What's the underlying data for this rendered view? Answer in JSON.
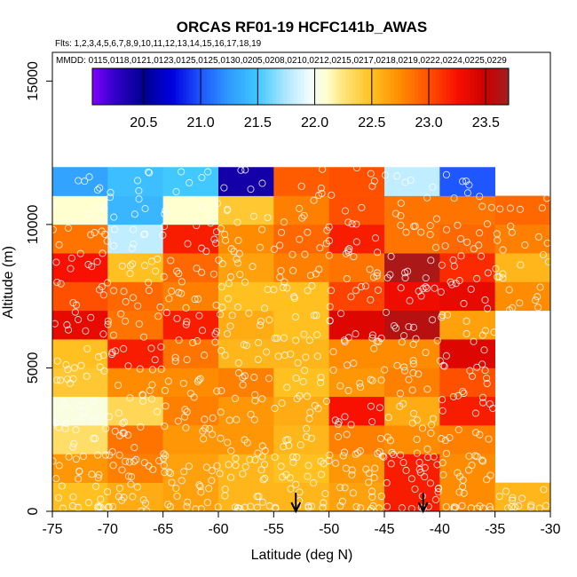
{
  "chart_data": {
    "type": "heatmap",
    "title": "ORCAS RF01-19 HCFC141b_AWAS",
    "flights_line": "Flts: 1,2,3,4,5,6,7,8,9,10,11,12,13,14,15,16,17,18,19",
    "mmdd_line": "MMDD: 0115,0118,0121,0123,0125,0125,0130,0205,0208,0210,0212,0215,0217,0218,0219,0222,0224,0225,0229",
    "xlabel": "Latitude (deg N)",
    "ylabel": "Altitude (m)",
    "xlim": [
      -75,
      -30
    ],
    "ylim": [
      0,
      16000
    ],
    "xticks": [
      "-75",
      "-70",
      "-65",
      "-60",
      "-55",
      "-50",
      "-45",
      "-40",
      "-35",
      "-30"
    ],
    "xtick_values": [
      -75,
      -70,
      -65,
      -60,
      -55,
      -50,
      -45,
      -40,
      -35,
      -30
    ],
    "yticks": [
      "0",
      "5000",
      "10000",
      "15000"
    ],
    "ytick_values": [
      0,
      5000,
      10000,
      15000
    ],
    "colorbar": {
      "min": 20.05,
      "max": 23.7,
      "ticks": [
        "20.5",
        "21.0",
        "21.5",
        "22.0",
        "22.5",
        "23.0",
        "23.5"
      ],
      "tick_values": [
        20.5,
        21.0,
        21.5,
        22.0,
        22.5,
        23.0,
        23.5
      ],
      "stops": [
        {
          "v": 20.05,
          "c": "#8000ff"
        },
        {
          "v": 20.25,
          "c": "#3000c8"
        },
        {
          "v": 20.5,
          "c": "#000090"
        },
        {
          "v": 20.75,
          "c": "#0000e0"
        },
        {
          "v": 21.0,
          "c": "#1e56ff"
        },
        {
          "v": 21.25,
          "c": "#2f9bff"
        },
        {
          "v": 21.5,
          "c": "#40c8ff"
        },
        {
          "v": 21.75,
          "c": "#b0e8ff"
        },
        {
          "v": 21.95,
          "c": "#eefcff"
        },
        {
          "v": 22.1,
          "c": "#ffffd0"
        },
        {
          "v": 22.25,
          "c": "#ffe57a"
        },
        {
          "v": 22.5,
          "c": "#ffc020"
        },
        {
          "v": 22.75,
          "c": "#ff8c00"
        },
        {
          "v": 23.0,
          "c": "#ff5000"
        },
        {
          "v": 23.25,
          "c": "#f81000"
        },
        {
          "v": 23.5,
          "c": "#cc0000"
        },
        {
          "v": 23.7,
          "c": "#a02020"
        }
      ]
    },
    "grid": {
      "lat_edges": [
        -75,
        -70,
        -65,
        -60,
        -55,
        -50,
        -45,
        -40,
        -35,
        -30
      ],
      "alt_edges": [
        0,
        1000,
        2000,
        3000,
        4000,
        5000,
        6000,
        7000,
        8000,
        9000,
        10000,
        11000,
        12000
      ],
      "rows": [
        [
          22.5,
          22.6,
          22.65,
          22.55,
          22.55,
          22.65,
          23.2,
          22.75,
          22.55
        ],
        [
          22.7,
          22.8,
          22.65,
          22.55,
          22.5,
          22.7,
          23.2,
          22.75,
          null
        ],
        [
          22.3,
          22.85,
          22.7,
          22.7,
          22.55,
          22.8,
          22.75,
          22.8,
          null
        ],
        [
          22.05,
          22.35,
          22.8,
          22.7,
          22.6,
          23.25,
          22.6,
          23.2,
          null
        ],
        [
          22.45,
          22.75,
          22.75,
          22.8,
          22.5,
          22.7,
          22.8,
          23.0,
          null
        ],
        [
          22.5,
          23.2,
          22.85,
          22.55,
          22.55,
          22.75,
          22.75,
          23.4,
          null
        ],
        [
          23.35,
          22.85,
          23.2,
          22.6,
          22.5,
          23.4,
          23.6,
          22.65,
          null
        ],
        [
          23.0,
          22.9,
          22.8,
          22.5,
          22.5,
          23.05,
          23.3,
          23.35,
          22.75
        ],
        [
          23.25,
          22.5,
          22.9,
          22.65,
          22.8,
          22.85,
          23.65,
          23.15,
          22.55
        ],
        [
          22.85,
          21.8,
          23.2,
          22.75,
          22.9,
          23.2,
          22.85,
          22.9,
          22.8
        ],
        [
          22.1,
          21.4,
          22.1,
          22.45,
          22.8,
          23.0,
          22.85,
          22.85,
          22.9
        ],
        [
          21.3,
          21.45,
          21.5,
          20.4,
          22.95,
          23.0,
          21.8,
          21.0,
          null
        ]
      ]
    },
    "arrows_lat": [
      -53,
      -41.5
    ],
    "points_note": "open circles mark individual sample locations"
  }
}
